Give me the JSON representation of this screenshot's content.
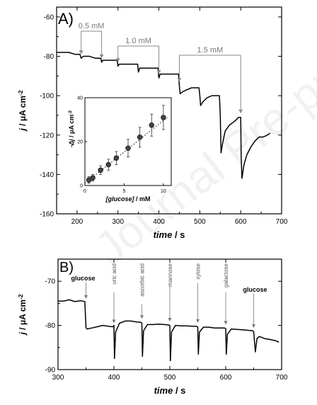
{
  "watermark": "Journal Pre-proof",
  "chart_data": [
    {
      "type": "line",
      "panel_label": "A)",
      "xlabel": "time / s",
      "ylabel": "j / μA cm⁻²",
      "xlim": [
        150,
        700
      ],
      "ylim": [
        -160,
        -55
      ],
      "xticks": [
        200,
        300,
        400,
        500,
        600,
        700
      ],
      "yticks": [
        -60,
        -80,
        -100,
        -120,
        -140,
        -160
      ],
      "additions": [
        {
          "label": "0.5 mM",
          "from": 210,
          "to": 260
        },
        {
          "label": "1.0 mM",
          "from": 300,
          "to": 400
        },
        {
          "label": "1.5 mM",
          "from": 450,
          "to": 600
        }
      ],
      "series": [
        {
          "x": [
            150,
            165,
            180,
            195,
            207,
            210,
            215,
            222,
            230,
            245,
            258,
            260,
            263,
            270,
            285,
            298,
            300,
            303,
            310,
            325,
            340,
            348,
            350,
            353,
            360,
            375,
            390,
            398,
            400,
            403,
            410,
            425,
            440,
            448,
            450,
            452,
            458,
            468,
            480,
            490,
            498,
            500,
            502,
            508,
            518,
            530,
            540,
            548,
            550,
            552,
            556,
            562,
            572,
            585,
            595,
            598,
            600,
            601,
            603,
            608,
            615,
            625,
            635,
            645,
            655,
            665,
            672
          ],
          "y": [
            -78,
            -78,
            -78,
            -79,
            -79,
            -81,
            -80,
            -80,
            -80,
            -81,
            -81,
            -83,
            -82,
            -82,
            -82,
            -82,
            -85,
            -84,
            -84,
            -84,
            -84,
            -84,
            -88,
            -86,
            -86,
            -86,
            -86,
            -86,
            -91,
            -89,
            -89,
            -89,
            -89,
            -89,
            -95,
            -99,
            -98,
            -97,
            -96,
            -96,
            -96,
            -100,
            -105,
            -103,
            -101,
            -100,
            -100,
            -100,
            -110,
            -129,
            -124,
            -118,
            -115,
            -113,
            -111,
            -111,
            -111,
            -130,
            -142,
            -135,
            -130,
            -126,
            -123,
            -121,
            -121,
            -120,
            -119
          ]
        }
      ],
      "inset": {
        "type": "scatter",
        "xlabel": "[glucose] / mM",
        "ylabel": "-Δj / μA cm⁻²",
        "xlim": [
          0,
          11
        ],
        "ylim": [
          0,
          40
        ],
        "xticks": [
          0,
          5,
          10
        ],
        "yticks": [
          0,
          20,
          40
        ],
        "points": {
          "x": [
            0.5,
            1.0,
            2.0,
            3.0,
            4.0,
            5.5,
            7.0,
            8.5,
            10.0
          ],
          "y": [
            2.5,
            3.5,
            7.0,
            9.5,
            12.5,
            17.0,
            22.0,
            27.5,
            31.0
          ],
          "err": [
            1.5,
            1.5,
            2.0,
            2.5,
            3.0,
            4.0,
            4.5,
            5.0,
            5.5
          ]
        },
        "fit": {
          "x": [
            0,
            10.5
          ],
          "y": [
            1.0,
            31.0
          ]
        }
      }
    },
    {
      "type": "line",
      "panel_label": "B)",
      "xlabel": "time / s",
      "ylabel": "j / μA cm⁻²",
      "xlim": [
        300,
        700
      ],
      "ylim": [
        -90,
        -65
      ],
      "xticks": [
        300,
        400,
        500,
        600,
        700
      ],
      "yticks": [
        -70,
        -80,
        -90
      ],
      "annotations": [
        {
          "label": "glucose",
          "x": 350,
          "bold": true
        },
        {
          "label": "uric acid",
          "x": 400
        },
        {
          "label": "ascorbic acid",
          "x": 450
        },
        {
          "label": "mannose",
          "x": 500
        },
        {
          "label": "xylose",
          "x": 550
        },
        {
          "label": "galactose",
          "x": 600
        },
        {
          "label": "glucose",
          "x": 650,
          "bold": true
        }
      ],
      "series": [
        {
          "x": [
            300,
            310,
            320,
            330,
            340,
            348,
            350,
            352,
            360,
            370,
            380,
            390,
            398,
            400,
            401,
            403,
            410,
            420,
            430,
            440,
            448,
            450,
            451,
            453,
            460,
            470,
            480,
            490,
            498,
            500,
            501,
            503,
            510,
            520,
            530,
            540,
            548,
            550,
            551,
            553,
            560,
            570,
            580,
            590,
            598,
            600,
            601,
            603,
            610,
            620,
            630,
            640,
            648,
            650,
            653,
            656,
            660,
            670,
            680,
            690,
            695
          ],
          "y": [
            -74.5,
            -74.5,
            -74.2,
            -74.6,
            -74.4,
            -74.6,
            -80.5,
            -80.8,
            -80.6,
            -80.3,
            -80.0,
            -80.2,
            -80.3,
            -80.0,
            -87.5,
            -81.5,
            -79.5,
            -79.0,
            -79.0,
            -79.2,
            -79.3,
            -79.5,
            -87.0,
            -81.2,
            -79.8,
            -79.8,
            -79.7,
            -79.8,
            -79.9,
            -80.0,
            -88.0,
            -81.5,
            -80.0,
            -80.1,
            -80.1,
            -80.2,
            -80.2,
            -80.4,
            -86.5,
            -81.5,
            -80.4,
            -80.4,
            -80.6,
            -80.6,
            -80.6,
            -80.7,
            -86.5,
            -82.0,
            -80.8,
            -80.9,
            -81.0,
            -81.1,
            -81.2,
            -81.4,
            -86.0,
            -83.0,
            -82.5,
            -83.0,
            -83.2,
            -83.5,
            -83.8
          ]
        }
      ]
    }
  ]
}
